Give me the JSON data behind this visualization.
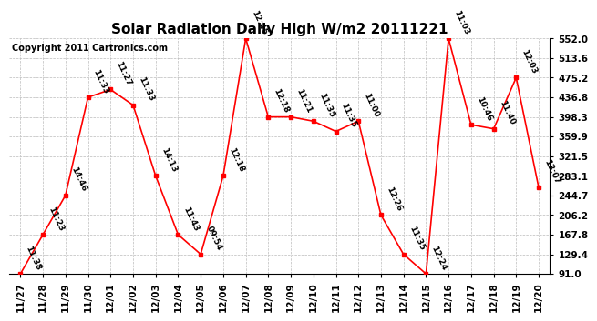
{
  "title": "Solar Radiation Daily High W/m2 20111221",
  "copyright": "Copyright 2011 Cartronics.com",
  "x_labels": [
    "11/27",
    "11/28",
    "11/29",
    "11/30",
    "12/01",
    "12/02",
    "12/03",
    "12/04",
    "12/05",
    "12/06",
    "12/07",
    "12/08",
    "12/09",
    "12/10",
    "12/11",
    "12/12",
    "12/13",
    "12/14",
    "12/15",
    "12/16",
    "12/17",
    "12/18",
    "12/19",
    "12/20"
  ],
  "y_values": [
    91.0,
    167.8,
    244.7,
    436.8,
    452.0,
    421.5,
    283.1,
    167.8,
    129.4,
    283.1,
    552.0,
    398.3,
    398.3,
    390.0,
    370.0,
    390.0,
    206.2,
    129.4,
    91.0,
    552.0,
    383.0,
    375.0,
    475.2,
    260.0
  ],
  "time_labels": [
    "11:38",
    "11:23",
    "14:46",
    "11:33",
    "11:27",
    "11:33",
    "14:13",
    "11:43",
    "09:54",
    "12:18",
    "12:45",
    "12:18",
    "11:21",
    "11:35",
    "11:35",
    "11:00",
    "12:26",
    "11:35",
    "12:24",
    "11:03",
    "10:46",
    "11:40",
    "12:03",
    "13:07"
  ],
  "ylim": [
    91.0,
    552.0
  ],
  "yticks": [
    91.0,
    129.4,
    167.8,
    206.2,
    244.7,
    283.1,
    321.5,
    359.9,
    398.3,
    436.8,
    475.2,
    513.6,
    552.0
  ],
  "line_color": "red",
  "marker_color": "red",
  "bg_color": "#ffffff",
  "plot_bg_color": "#ffffff",
  "grid_color": "#bbbbbb",
  "title_fontsize": 11,
  "copyright_fontsize": 7,
  "label_fontsize": 6.5,
  "tick_fontsize": 7.5
}
